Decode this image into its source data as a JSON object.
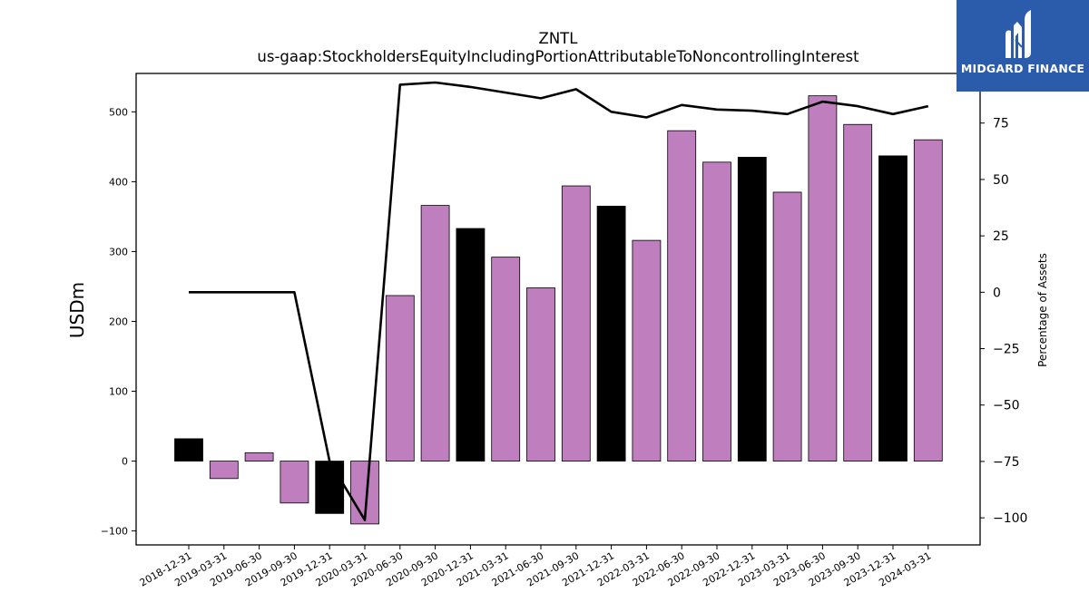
{
  "chart_data": {
    "type": "bar",
    "title": "ZNTL",
    "subtitle": "us-gaap:StockholdersEquityIncludingPortionAttributableToNoncontrollingInterest",
    "ylabel": "USDm",
    "ylabel_right": "Percentage of Assets",
    "ylim": [
      -120,
      555
    ],
    "ylim_right": [
      -112,
      97
    ],
    "yticks": [
      -100,
      0,
      100,
      200,
      300,
      400,
      500
    ],
    "yticks_right": [
      -100,
      -75,
      -50,
      -25,
      0,
      25,
      50,
      75
    ],
    "categories": [
      "2018-12-31",
      "2019-03-31",
      "2019-06-30",
      "2019-09-30",
      "2019-12-31",
      "2020-03-31",
      "2020-06-30",
      "2020-09-30",
      "2020-12-31",
      "2021-03-31",
      "2021-06-30",
      "2021-09-30",
      "2021-12-31",
      "2022-03-31",
      "2022-06-30",
      "2022-09-30",
      "2022-12-31",
      "2023-03-31",
      "2023-06-30",
      "2023-09-30",
      "2023-12-31",
      "2024-03-31"
    ],
    "series": [
      {
        "type": "bar",
        "axis": "left",
        "values": [
          32,
          -25,
          12,
          -60,
          -75,
          -90,
          237,
          366,
          333,
          292,
          248,
          394,
          365,
          316,
          473,
          428,
          435,
          385,
          523,
          482,
          437,
          460
        ],
        "highlight": [
          true,
          false,
          false,
          false,
          true,
          false,
          false,
          false,
          true,
          false,
          false,
          false,
          true,
          false,
          false,
          false,
          true,
          false,
          false,
          false,
          true,
          false
        ]
      },
      {
        "type": "line",
        "axis": "right",
        "values": [
          0,
          0,
          0,
          0,
          -75,
          -101,
          92,
          93,
          91,
          88.5,
          86,
          90,
          80,
          77.5,
          83,
          81,
          80.5,
          79,
          84.5,
          82.5,
          79,
          82.5
        ]
      }
    ],
    "grid": false,
    "legend": "none"
  },
  "colors": {
    "bar": "#bf7fbf",
    "bar_highlight": "#000000",
    "line": "#000000",
    "logo_bg": "#2a5cab"
  },
  "logo": {
    "text": "MIDGARD FINANCE",
    "icon": "midgard-logo-icon"
  }
}
